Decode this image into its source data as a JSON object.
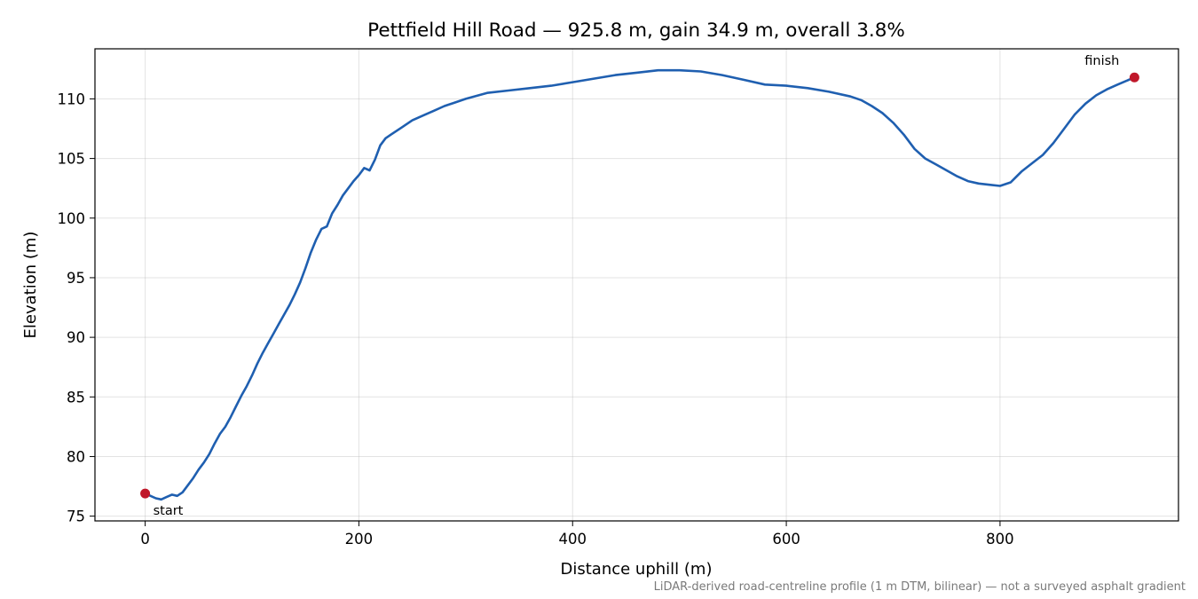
{
  "chart_data": {
    "type": "line",
    "title": "Pettfield Hill Road — 925.8 m, gain 34.9 m, overall 3.8%",
    "xlabel": "Distance uphill (m)",
    "ylabel": "Elevation (m)",
    "xlim": [
      -47,
      967
    ],
    "ylim": [
      74.6,
      114.2
    ],
    "x_ticks": [
      0,
      200,
      400,
      600,
      800
    ],
    "y_ticks": [
      75,
      80,
      85,
      90,
      95,
      100,
      105,
      110
    ],
    "grid": true,
    "line_color": "#1f5fb0",
    "marker_color": "#c0182a",
    "footnote": "LiDAR-derived road-centreline profile (1 m DTM, bilinear) — not a surveyed asphalt gradient",
    "series": [
      {
        "x": [
          0,
          5,
          10,
          15,
          20,
          25,
          30,
          35,
          40,
          45,
          50,
          55,
          60,
          65,
          70,
          75,
          80,
          85,
          90,
          95,
          100,
          105,
          110,
          115,
          120,
          125,
          130,
          135,
          140,
          145,
          150,
          155,
          160,
          165,
          170,
          175,
          180,
          185,
          190,
          195,
          200,
          205,
          210,
          215,
          220,
          225,
          230,
          240,
          250,
          260,
          270,
          280,
          290,
          300,
          320,
          340,
          360,
          380,
          400,
          420,
          440,
          460,
          480,
          500,
          520,
          540,
          560,
          580,
          600,
          620,
          640,
          660,
          670,
          680,
          690,
          700,
          710,
          720,
          730,
          740,
          750,
          760,
          770,
          780,
          790,
          800,
          810,
          820,
          830,
          840,
          850,
          860,
          870,
          880,
          890,
          900,
          910,
          925.8
        ],
        "y": [
          76.9,
          76.7,
          76.5,
          76.4,
          76.6,
          76.8,
          76.7,
          77.0,
          77.6,
          78.2,
          78.9,
          79.5,
          80.2,
          81.1,
          81.9,
          82.5,
          83.3,
          84.2,
          85.1,
          85.9,
          86.8,
          87.8,
          88.7,
          89.5,
          90.3,
          91.1,
          91.9,
          92.7,
          93.6,
          94.6,
          95.8,
          97.1,
          98.2,
          99.1,
          99.3,
          100.4,
          101.1,
          101.9,
          102.5,
          103.1,
          103.6,
          104.2,
          104.0,
          104.9,
          106.1,
          106.7,
          107.0,
          107.6,
          108.2,
          108.6,
          109.0,
          109.4,
          109.7,
          110.0,
          110.5,
          110.7,
          110.9,
          111.1,
          111.4,
          111.7,
          112.0,
          112.2,
          112.4,
          112.4,
          112.3,
          112.0,
          111.6,
          111.2,
          111.1,
          110.9,
          110.6,
          110.2,
          109.9,
          109.4,
          108.8,
          108.0,
          107.0,
          105.8,
          105.0,
          104.5,
          104.0,
          103.5,
          103.1,
          102.9,
          102.8,
          102.7,
          103.0,
          103.9,
          104.6,
          105.3,
          106.3,
          107.5,
          108.7,
          109.6,
          110.3,
          110.8,
          111.2,
          111.8
        ]
      }
    ],
    "points": [
      {
        "label": "start",
        "x": 0,
        "y": 76.9
      },
      {
        "label": "finish",
        "x": 925.8,
        "y": 111.8
      }
    ]
  }
}
